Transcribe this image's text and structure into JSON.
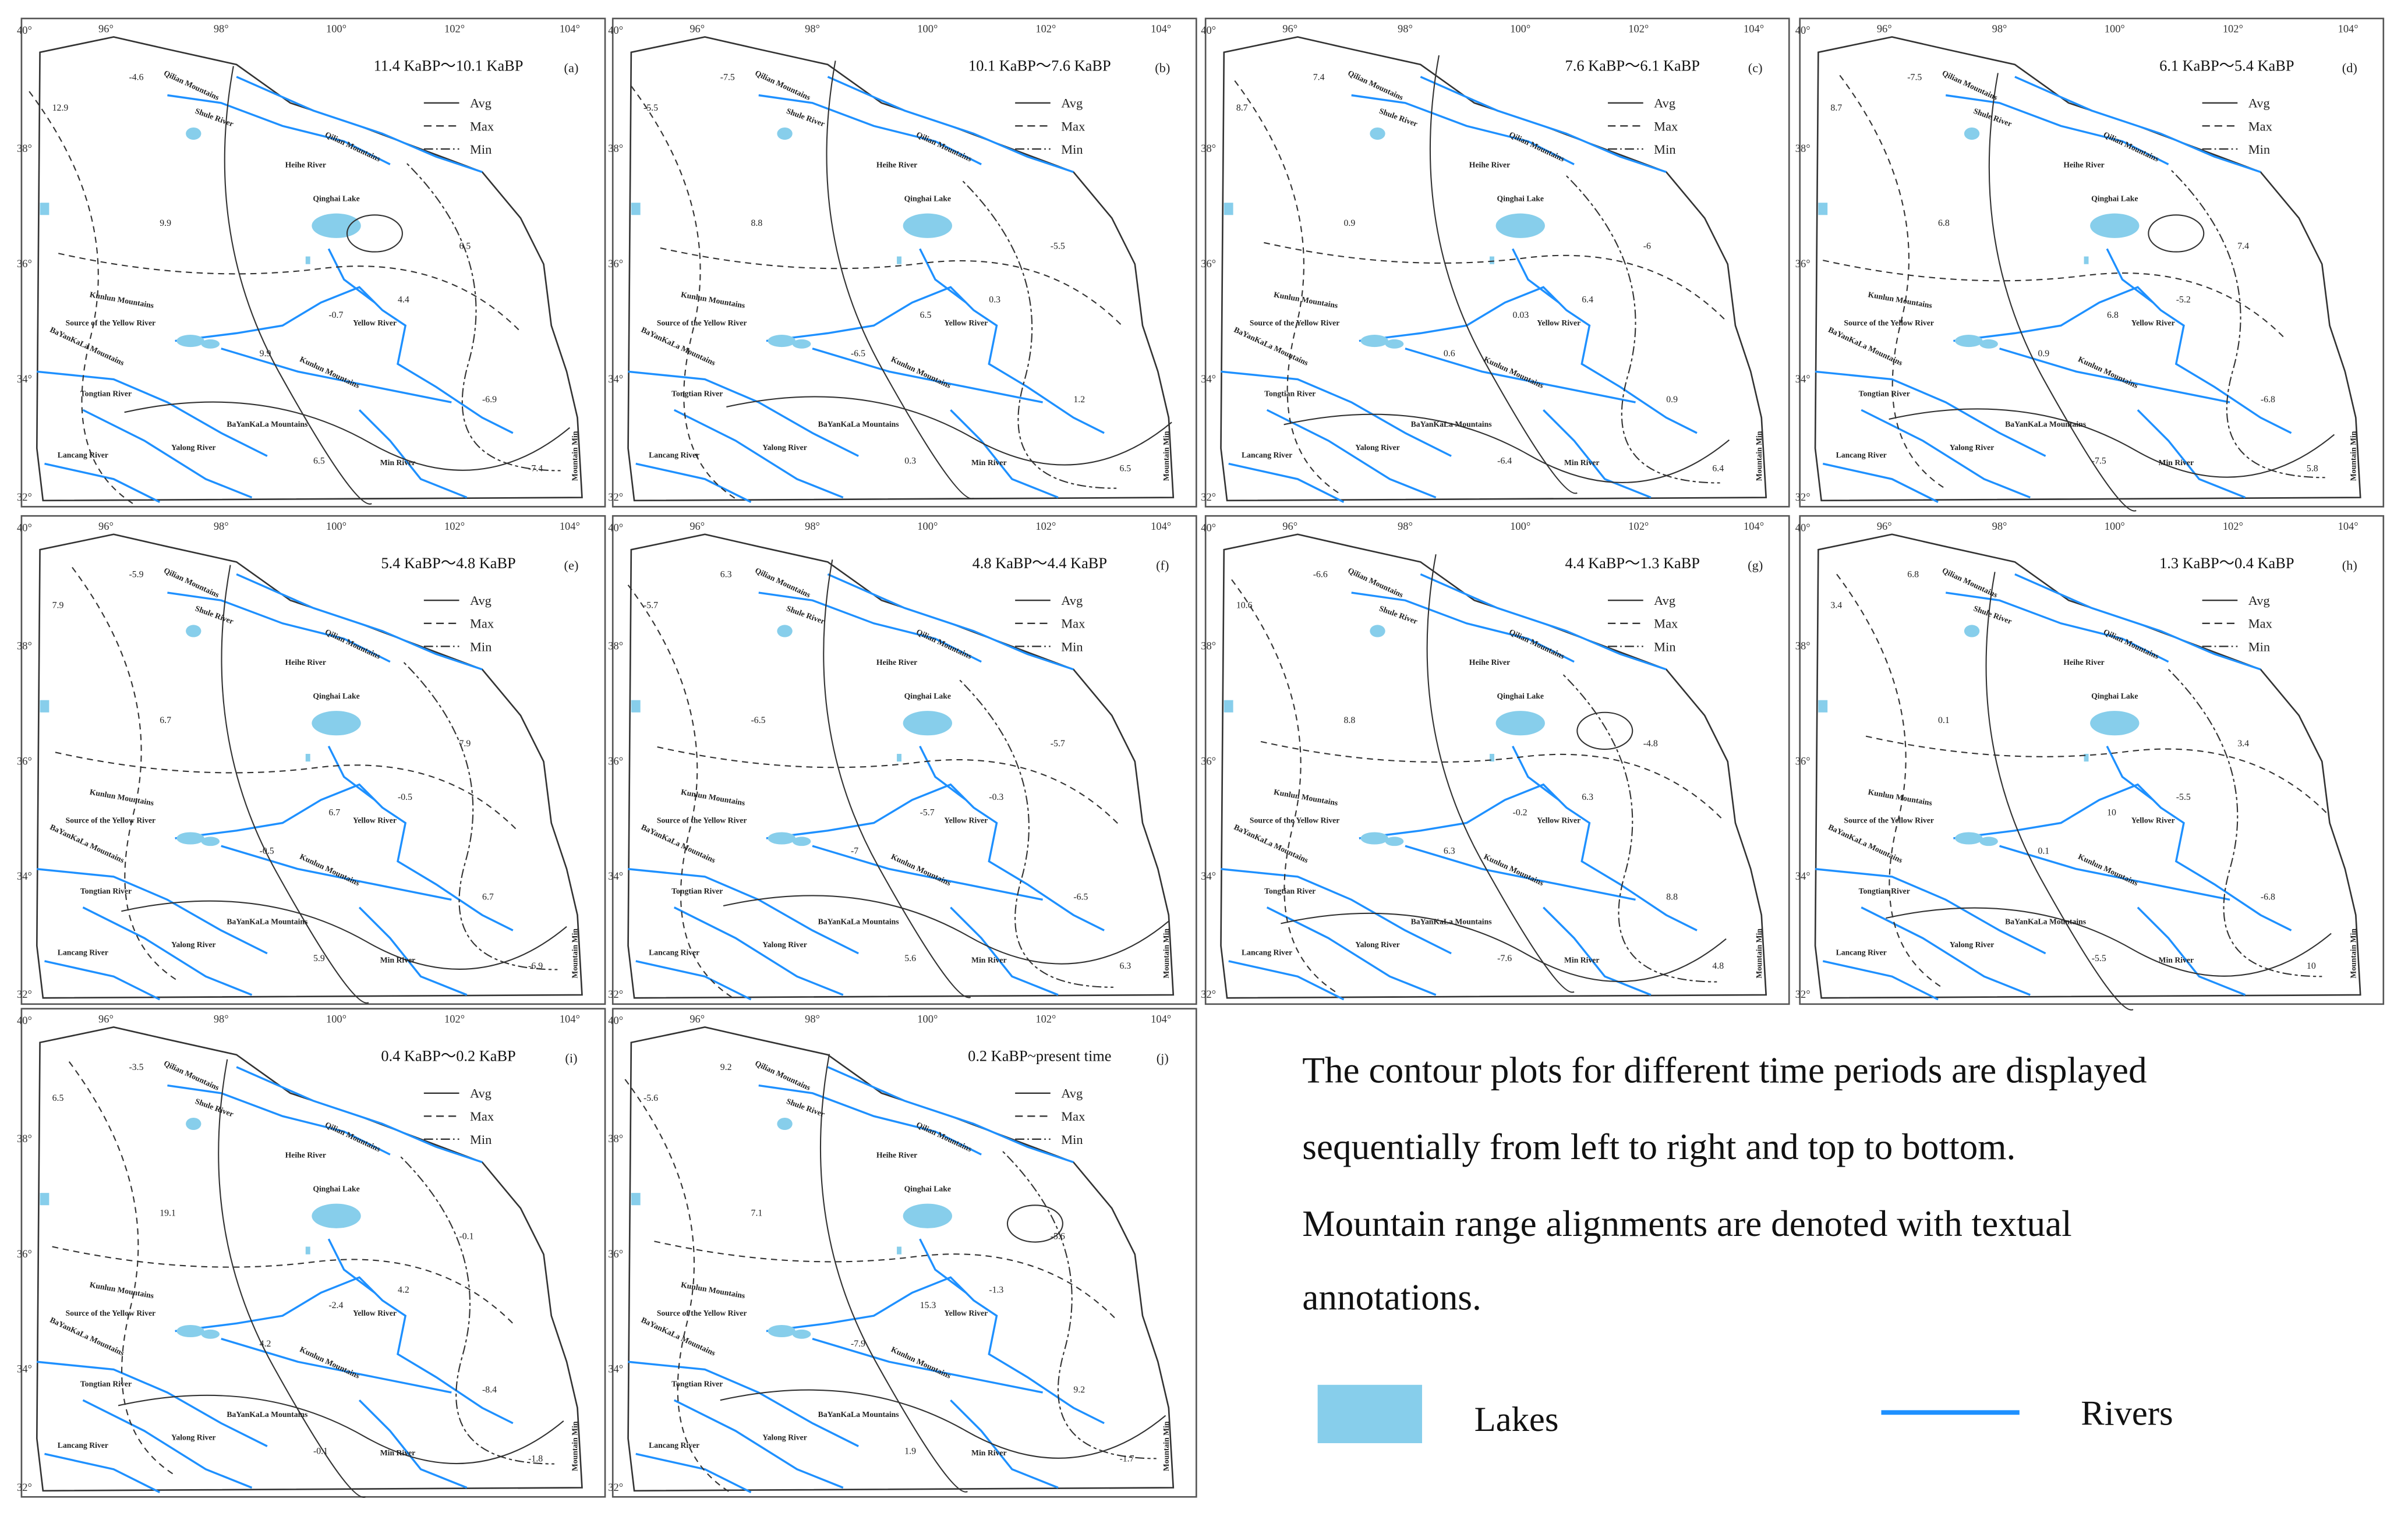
{
  "lon_ticks": [
    "96°",
    "98°",
    "100°",
    "102°",
    "104°"
  ],
  "lat_ticks": [
    "40°",
    "38°",
    "36°",
    "34°",
    "32°"
  ],
  "legend_lines": [
    "Avg",
    "Max",
    "Min"
  ],
  "places": [
    "Qilian Mountains",
    "Shule River",
    "Qilian Mountains",
    "Heihe River",
    "Qinghai Lake",
    "Kunlun Mountains",
    "Source of the Yellow River",
    "BaYanKaLa Mountains",
    "Yellow River",
    "Kunlun Mountains",
    "Tongtian River",
    "BaYanKaLa Mountains",
    "Lancang River",
    "Yalong River",
    "Min River",
    "Mountain Min"
  ],
  "panels": [
    {
      "title": "11.4 KaBP～10.1 KaBP",
      "letter": "(a)",
      "contour_labels": [
        12.9,
        9.9,
        -4.6,
        -0.7,
        4.4,
        6.5,
        -6.9,
        -7.4,
        9.9,
        6.5
      ]
    },
    {
      "title": "10.1 KaBP～7.6 KaBP",
      "letter": "(b)",
      "contour_labels": [
        -5.5,
        8.8,
        -7.5,
        6.5,
        0.3,
        -5.5,
        1.2,
        6.5,
        -6.5,
        0.3
      ]
    },
    {
      "title": "7.6 KaBP～6.1 KaBP",
      "letter": "(c)",
      "contour_labels": [
        8.7,
        0.9,
        7.4,
        0.03,
        6.4,
        -6,
        0.9,
        6.4,
        0.6,
        -6.4
      ]
    },
    {
      "title": "6.1 KaBP～5.4 KaBP",
      "letter": "(d)",
      "contour_labels": [
        8.7,
        6.8,
        -7.5,
        6.8,
        -5.2,
        7.4,
        -6.8,
        5.8,
        0.9,
        -7.5
      ]
    },
    {
      "title": "5.4 KaBP～4.8 KaBP",
      "letter": "(e)",
      "contour_labels": [
        7.9,
        6.7,
        -5.9,
        6.7,
        -0.5,
        7.9,
        6.7,
        -6.9,
        -0.5,
        5.9
      ]
    },
    {
      "title": "4.8 KaBP～4.4 KaBP",
      "letter": "(f)",
      "contour_labels": [
        -5.7,
        -6.5,
        6.3,
        -5.7,
        -0.3,
        -5.7,
        -6.5,
        6.3,
        -7,
        5.6
      ]
    },
    {
      "title": "4.4 KaBP～1.3 KaBP",
      "letter": "(g)",
      "contour_labels": [
        10.6,
        8.8,
        -6.6,
        -0.2,
        6.3,
        -4.8,
        8.8,
        4.8,
        6.3,
        -7.6
      ]
    },
    {
      "title": "1.3 KaBP～0.4 KaBP",
      "letter": "(h)",
      "contour_labels": [
        3.4,
        0.1,
        6.8,
        10,
        -5.5,
        3.4,
        -6.8,
        10,
        0.1,
        -5.5
      ]
    },
    {
      "title": "0.4 KaBP～0.2 KaBP",
      "letter": "(i)",
      "contour_labels": [
        6.5,
        19.1,
        -3.5,
        -2.4,
        4.2,
        -0.1,
        -8.4,
        -1.8,
        4.2,
        -0.1
      ]
    },
    {
      "title": "0.2 KaBP~present time",
      "letter": "(j)",
      "contour_labels": [
        -5.6,
        7.1,
        9.2,
        15.3,
        -1.3,
        -5.6,
        9.2,
        -1.7,
        -7.9,
        1.9
      ]
    }
  ],
  "caption": [
    "The contour plots for different time periods are displayed",
    "sequentially from left to right and top to bottom.",
    "Mountain range alignments are denoted with textual",
    "annotations."
  ],
  "legend": {
    "lakes": "Lakes",
    "rivers": "Rivers"
  }
}
